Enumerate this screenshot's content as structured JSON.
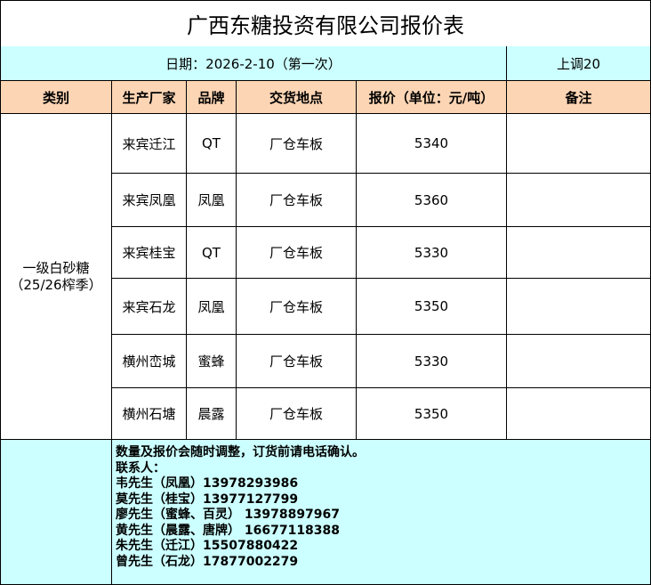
{
  "title": "广西东糖投资有限公司报价表",
  "date_line": "日期：2026-2-10（第一次）",
  "adjustment": "上调20",
  "headers": [
    "类别",
    "生产厂家",
    "品牌",
    "交货地点",
    "报价（单位：元/吨）",
    "备注"
  ],
  "category": {
    "line1": "一级白砂糖",
    "line2": "（25/26榨季）"
  },
  "rows": [
    {
      "maker": "来宾迁江",
      "brand": "QT",
      "delivery": "厂仓车板",
      "price": "5340",
      "note": ""
    },
    {
      "maker": "来宾凤凰",
      "brand": "凤凰",
      "delivery": "厂仓车板",
      "price": "5360",
      "note": ""
    },
    {
      "maker": "来宾桂宝",
      "brand": "QT",
      "delivery": "厂仓车板",
      "price": "5330",
      "note": ""
    },
    {
      "maker": "来宾石龙",
      "brand": "凤凰",
      "delivery": "厂仓车板",
      "price": "5350",
      "note": ""
    },
    {
      "maker": "横州峦城",
      "brand": "蜜蜂",
      "delivery": "厂仓车板",
      "price": "5330",
      "note": ""
    },
    {
      "maker": "横州石塘",
      "brand": "晨露",
      "delivery": "厂仓车板",
      "price": "5350",
      "note": ""
    }
  ],
  "notes": [
    "数量及报价会随时调整，订货前请电话确认。",
    "联系人：",
    "韦先生（凤凰）13978293986",
    "莫先生（桂宝）13977127799",
    "廖先生（蜜蜂、百灵） 13978897967",
    "黄先生（晨露、唐牌） 16677118388",
    "朱先生（迁江）15507880422",
    "曾先生（石龙）17877002279"
  ],
  "colors": {
    "cyan": "#ccffff",
    "peach": "#fcd5b4"
  }
}
